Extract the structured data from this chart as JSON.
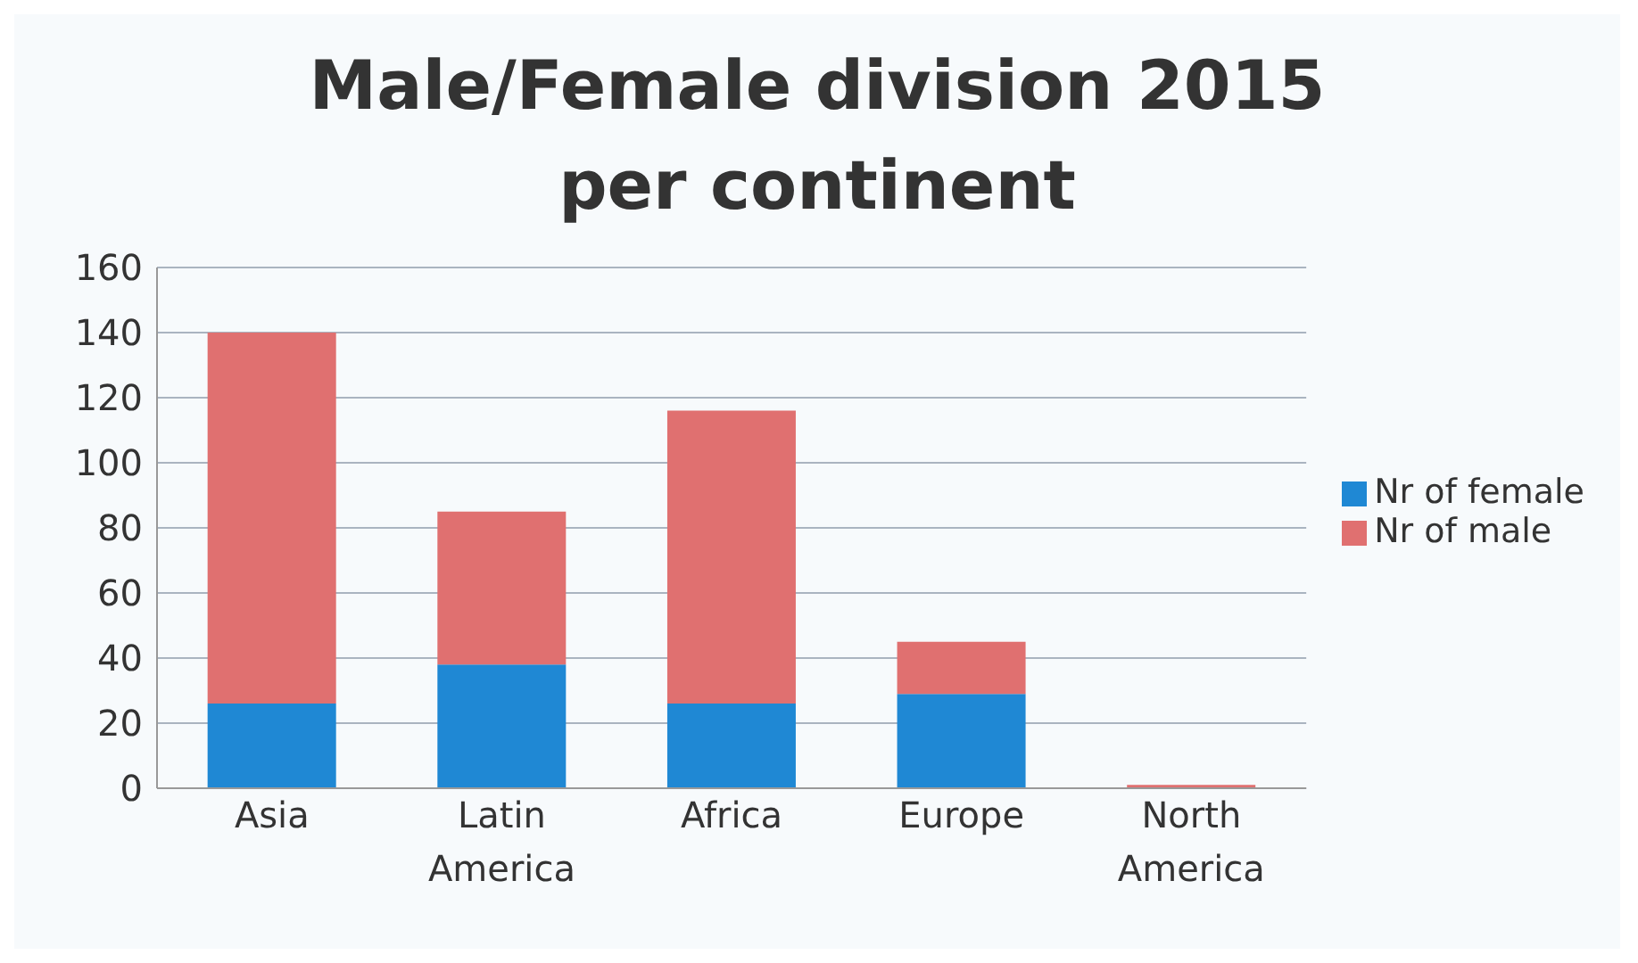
{
  "chart_data": {
    "type": "bar",
    "title": "Male/Female division 2015\nper continent",
    "categories": [
      "Asia",
      "Latin America",
      "Africa",
      "Europe",
      "North America"
    ],
    "stacked": true,
    "series": [
      {
        "name": "Nr of female",
        "color": "#1f88d4",
        "values": [
          26,
          38,
          26,
          29,
          0
        ]
      },
      {
        "name": "Nr of male",
        "color": "#e07070",
        "values": [
          114,
          47,
          90,
          16,
          1
        ]
      }
    ],
    "ylim": [
      0,
      160
    ],
    "yticks": [
      0,
      20,
      40,
      60,
      80,
      100,
      120,
      140,
      160
    ],
    "grid": "y",
    "legend": "right"
  }
}
